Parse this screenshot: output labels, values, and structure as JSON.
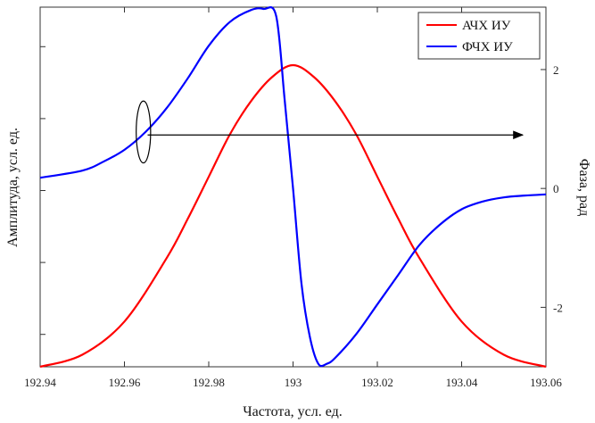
{
  "chart_data": {
    "type": "line",
    "xlabel": "Частота, усл. ед.",
    "ylabel_left": "Амплитуда, усл. ед.",
    "ylabel_right": "Фаза, рад",
    "xlim": [
      192.94,
      193.06
    ],
    "x_ticks": [
      "192.94",
      "192.96",
      "192.98",
      "193",
      "193.02",
      "193.04",
      "193.06"
    ],
    "x_tick_values": [
      192.94,
      192.96,
      192.98,
      193.0,
      193.02,
      193.04,
      193.06
    ],
    "y_right_lim": [
      -3.0,
      3.05
    ],
    "y_right_ticks": [
      "2",
      "0",
      "-2"
    ],
    "y_right_tick_values": [
      2,
      0,
      -2
    ],
    "y_left_lim": [
      0,
      1
    ],
    "y_left_tick_count": 5,
    "grid": false,
    "legend_position": "top-right",
    "series": [
      {
        "name": "АЧХ ИУ",
        "axis": "left",
        "color": "#ff0000",
        "x": [
          192.94,
          192.95,
          192.96,
          192.97,
          192.975,
          192.98,
          192.985,
          192.99,
          192.995,
          193.0,
          193.005,
          193.01,
          193.015,
          193.02,
          193.025,
          193.03,
          193.04,
          193.05,
          193.06
        ],
        "y": [
          0.0,
          0.04,
          0.15,
          0.36,
          0.49,
          0.63,
          0.77,
          0.88,
          0.96,
          1.0,
          0.96,
          0.88,
          0.77,
          0.63,
          0.49,
          0.36,
          0.15,
          0.04,
          0.0
        ]
      },
      {
        "name": "ФЧХ ИУ",
        "axis": "right",
        "color": "#0000ff",
        "x": [
          192.94,
          192.95,
          192.955,
          192.96,
          192.965,
          192.97,
          192.975,
          192.98,
          192.985,
          192.99,
          192.993,
          192.996,
          192.998,
          193.0,
          193.002,
          193.004,
          193.006,
          193.008,
          193.01,
          193.015,
          193.02,
          193.025,
          193.03,
          193.035,
          193.04,
          193.045,
          193.05,
          193.055,
          193.06
        ],
        "y": [
          0.18,
          0.3,
          0.45,
          0.65,
          0.95,
          1.35,
          1.85,
          2.4,
          2.8,
          3.0,
          3.02,
          2.9,
          1.5,
          0.0,
          -1.6,
          -2.5,
          -2.95,
          -2.95,
          -2.85,
          -2.45,
          -1.95,
          -1.45,
          -0.95,
          -0.6,
          -0.35,
          -0.22,
          -0.15,
          -0.12,
          -0.1
        ]
      }
    ],
    "annotations": [
      {
        "type": "ellipse",
        "x": 192.9645,
        "y_right": 0.95,
        "rx_data": 0.0015,
        "ry_data": 0.52
      },
      {
        "type": "arrow",
        "x_from": 192.9655,
        "x_to": 193.06,
        "y_right": 0.9
      }
    ]
  }
}
